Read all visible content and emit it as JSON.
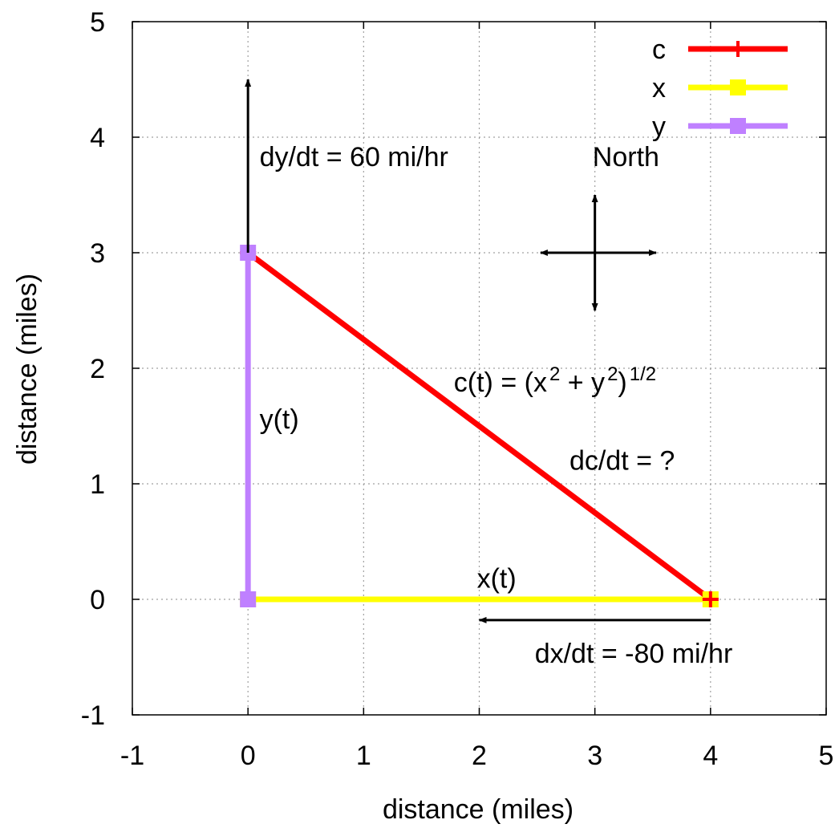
{
  "chart_data": {
    "type": "line",
    "xlabel": "distance (miles)",
    "ylabel": "distance (miles)",
    "xlim": [
      -1,
      5
    ],
    "ylim": [
      -1,
      5
    ],
    "x_ticks": [
      -1,
      0,
      1,
      2,
      3,
      4,
      5
    ],
    "y_ticks": [
      -1,
      0,
      1,
      2,
      3,
      4,
      5
    ],
    "grid": true,
    "legend_position": "top-right",
    "series": [
      {
        "name": "c",
        "color": "#ff0000",
        "marker": "plus",
        "points": [
          {
            "x": 0,
            "y": 3
          },
          {
            "x": 4,
            "y": 0
          }
        ]
      },
      {
        "name": "x",
        "color": "#ffff00",
        "marker": "square",
        "points": [
          {
            "x": 0,
            "y": 0
          },
          {
            "x": 4,
            "y": 0
          }
        ]
      },
      {
        "name": "y",
        "color": "#bf80ff",
        "marker": "square",
        "points": [
          {
            "x": 0,
            "y": 0
          },
          {
            "x": 0,
            "y": 3
          }
        ]
      }
    ],
    "arrows": [
      {
        "name": "dy-dt-arrow",
        "from": [
          0,
          3
        ],
        "to": [
          0,
          4.5
        ]
      },
      {
        "name": "dx-dt-arrow",
        "from": [
          4,
          -0.18
        ],
        "to": [
          2,
          -0.18
        ]
      },
      {
        "name": "north-arrow",
        "from": [
          3,
          3
        ],
        "to": [
          3,
          3.5
        ]
      },
      {
        "name": "south-arrow",
        "from": [
          3,
          3
        ],
        "to": [
          3,
          2.5
        ]
      },
      {
        "name": "east-arrow",
        "from": [
          3,
          3
        ],
        "to": [
          3.53,
          3
        ]
      },
      {
        "name": "west-arrow",
        "from": [
          3,
          3
        ],
        "to": [
          2.53,
          3
        ]
      }
    ],
    "annotations": {
      "dy_dt": {
        "text": "dy/dt = 60 mi/hr",
        "x": 0.1,
        "y": 3.75
      },
      "north": {
        "text": "North",
        "x": 2.98,
        "y": 3.75
      },
      "c_formula": {
        "parts": [
          "c(t) = (x",
          "2",
          " + y",
          "2",
          ")",
          "1/2"
        ],
        "x": 1.78,
        "y": 1.8
      },
      "dc_dt": {
        "text": "dc/dt = ?",
        "x": 2.78,
        "y": 1.12
      },
      "y_t": {
        "text": "y(t)",
        "x": 0.1,
        "y": 1.48
      },
      "x_t": {
        "text": "x(t)",
        "x": 1.98,
        "y": 0.1
      },
      "dx_dt": {
        "text": "dx/dt = -80 mi/hr",
        "x": 2.48,
        "y": -0.55
      }
    }
  }
}
